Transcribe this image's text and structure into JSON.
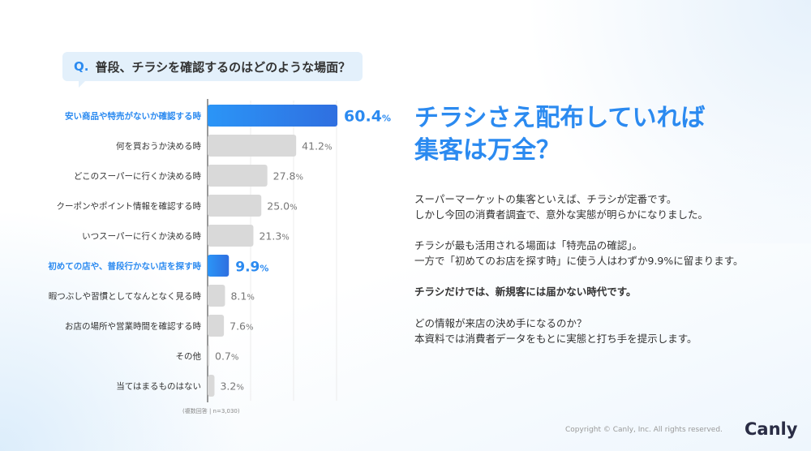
{
  "question": {
    "prefix": "Q.",
    "text": "普段、チラシを確認するのはどのような場面？"
  },
  "chart_data": {
    "type": "bar",
    "orientation": "horizontal",
    "categories": [
      "安い商品や特売がないか確認する時",
      "何を買おうか決める時",
      "どこのスーパーに行くか決める時",
      "クーポンやポイント情報を確認する時",
      "いつスーパーに行くか決める時",
      "初めての店や、普段行かない店を探す時",
      "暇つぶしや習慣としてなんとなく見る時",
      "お店の場所や営業時間を確認する時",
      "その他",
      "当てはまるものはない"
    ],
    "values": [
      60.4,
      41.2,
      27.8,
      25.0,
      21.3,
      9.9,
      8.1,
      7.6,
      0.7,
      3.2
    ],
    "value_labels": [
      "60.4",
      "41.2",
      "27.8",
      "25.0",
      "21.3",
      "9.9",
      "8.1",
      "7.6",
      "0.7",
      "3.2"
    ],
    "unit": "%",
    "highlighted": [
      0,
      5
    ],
    "xlim": [
      0,
      80
    ],
    "grid": true,
    "note": "(複数回答 | n=3,030)"
  },
  "colors": {
    "accent": "#2b8af0",
    "bar": "#d9d9d9"
  },
  "headline": {
    "line1": "チラシさえ配布していれば",
    "line2": "集客は万全？"
  },
  "body": {
    "p1a": "スーパーマーケットの集客といえば、チラシが定番です。",
    "p1b": "しかし今回の消費者調査で、意外な実態が明らかになりました。",
    "p2a": "チラシが最も活用される場面は「特売品の確認」。",
    "p2b": "一方で「初めてのお店を探す時」に使う人はわずか9.9%に留まります。",
    "p3": "チラシだけでは、新規客には届かない時代です。",
    "p4a": "どの情報が来店の決め手になるのか？",
    "p4b": "本資料では消費者データをもとに実態と打ち手を提示します。"
  },
  "footer": {
    "copyright": "Copyright © Canly, Inc. All rights reserved.",
    "logo": "Canly"
  }
}
